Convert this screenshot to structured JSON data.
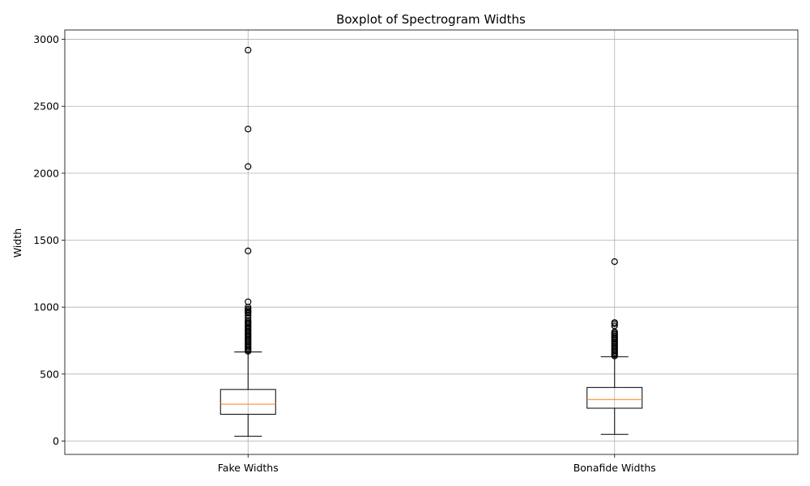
{
  "chart_data": {
    "type": "boxplot",
    "title": "Boxplot of Spectrogram Widths",
    "xlabel": "",
    "ylabel": "Width",
    "ylim": [
      -100,
      3070
    ],
    "yticks": [
      0,
      500,
      1000,
      1500,
      2000,
      2500,
      3000
    ],
    "grid": true,
    "categories": [
      "Fake Widths",
      "Bonafide Widths"
    ],
    "boxes": [
      {
        "name": "Fake Widths",
        "whisker_low": 35,
        "q1": 200,
        "median": 275,
        "q3": 385,
        "whisker_high": 665,
        "outliers": [
          670,
          680,
          690,
          700,
          710,
          720,
          730,
          740,
          750,
          760,
          770,
          780,
          790,
          800,
          810,
          820,
          830,
          840,
          850,
          860,
          870,
          880,
          890,
          900,
          920,
          940,
          955,
          965,
          975,
          985,
          1000,
          1040,
          1420,
          2050,
          2330,
          2920
        ]
      },
      {
        "name": "Bonafide Widths",
        "whisker_low": 50,
        "q1": 245,
        "median": 310,
        "q3": 400,
        "whisker_high": 630,
        "outliers": [
          635,
          645,
          655,
          665,
          675,
          685,
          695,
          705,
          715,
          725,
          735,
          745,
          755,
          765,
          775,
          785,
          795,
          805,
          815,
          860,
          875,
          885,
          1340
        ]
      }
    ],
    "colors": {
      "box": "#000000",
      "median": "#ff7f0e",
      "grid": "#b0b0b0"
    }
  }
}
